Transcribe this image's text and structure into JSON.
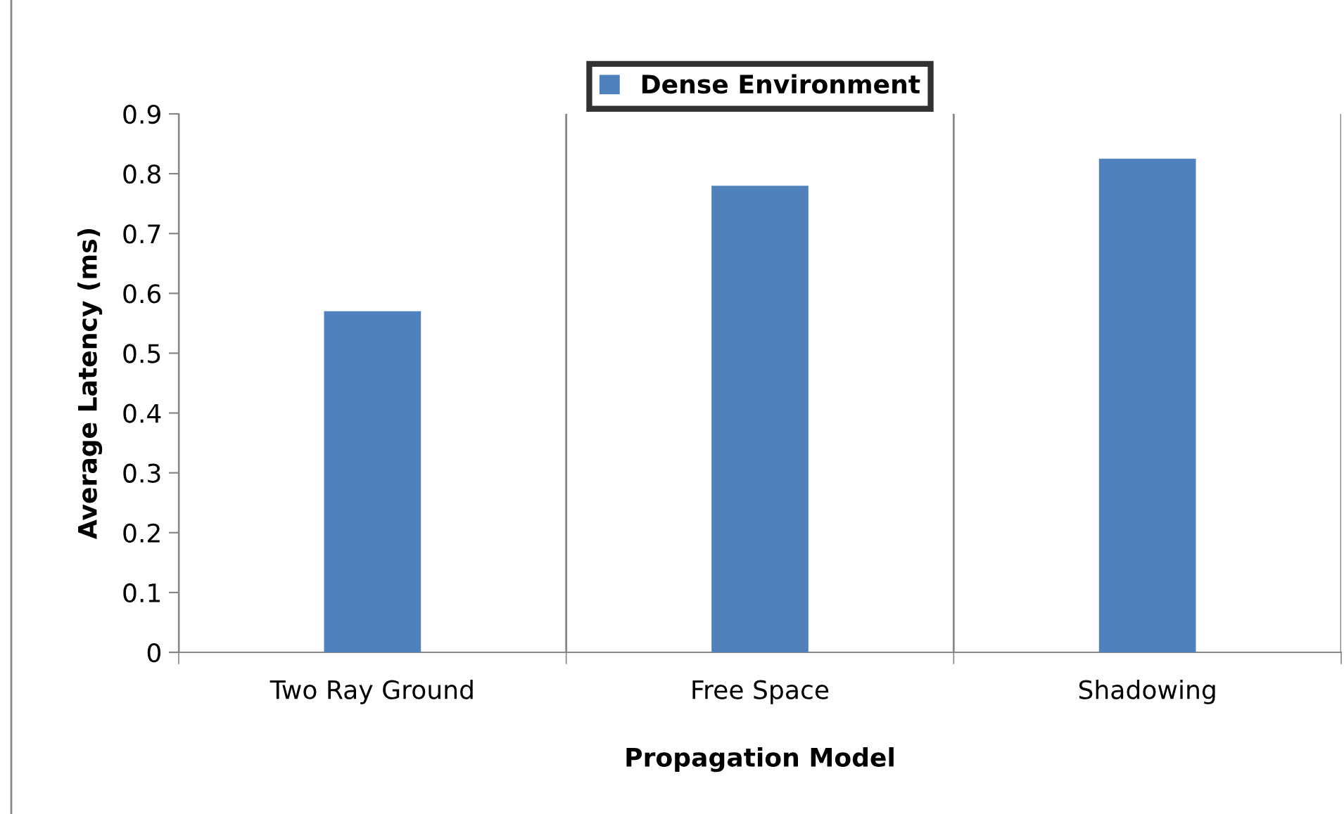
{
  "chart_data": {
    "type": "bar",
    "xlabel": "Propagation Model",
    "ylabel": "Average Latency (ms)",
    "categories": [
      "Two Ray Ground",
      "Free Space",
      "Shadowing"
    ],
    "series": [
      {
        "name": "Dense Environment",
        "color": "#4f81bd",
        "values": [
          0.57,
          0.78,
          0.825
        ]
      }
    ],
    "ylim": [
      0,
      0.9
    ],
    "yticks": [
      0,
      0.1,
      0.2,
      0.3,
      0.4,
      0.5,
      0.6,
      0.7,
      0.8,
      0.9
    ],
    "grid": "x",
    "legend": "top"
  }
}
